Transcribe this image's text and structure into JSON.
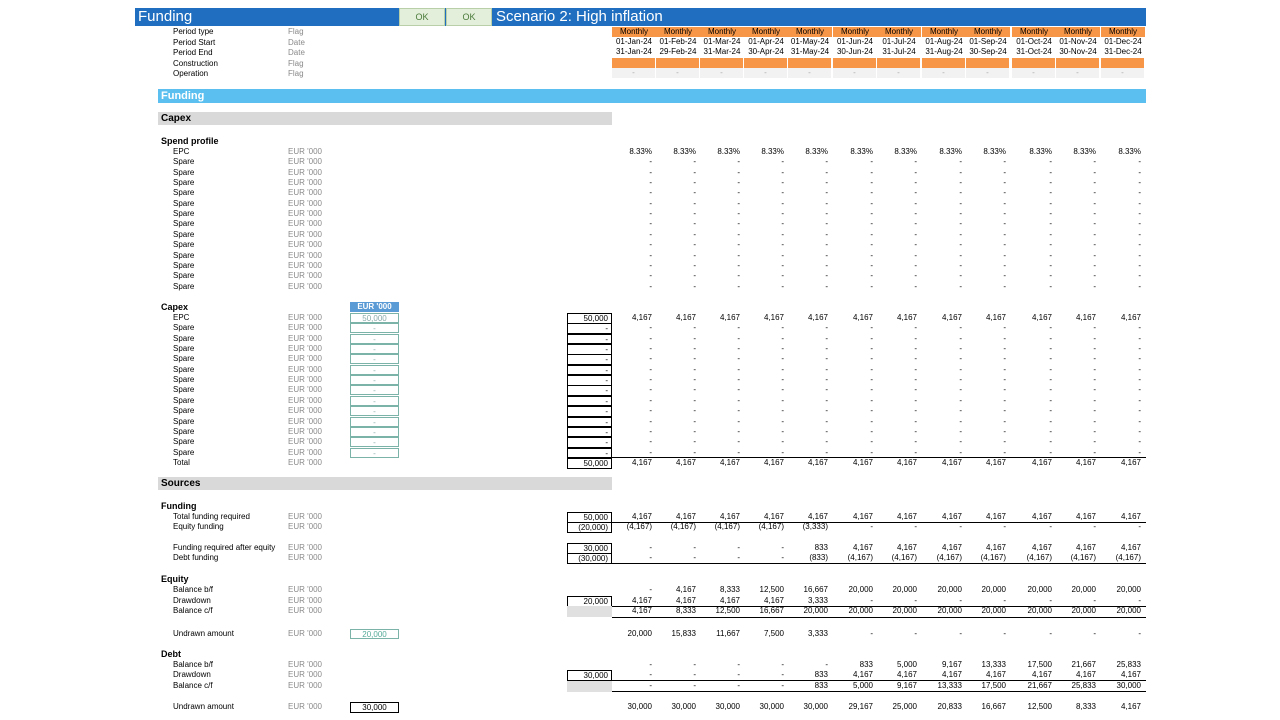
{
  "header": {
    "title": "Funding",
    "ok1": "OK",
    "ok2": "OK",
    "scenario": "Scenario 2: High inflation"
  },
  "timeline": {
    "rows": [
      {
        "label": "Period type",
        "unit": "Flag"
      },
      {
        "label": "Period Start",
        "unit": "Date"
      },
      {
        "label": "Period End",
        "unit": "Date"
      },
      {
        "label": "Construction",
        "unit": "Flag"
      },
      {
        "label": "Operation",
        "unit": "Flag"
      }
    ],
    "period_type": [
      "Monthly",
      "Monthly",
      "Monthly",
      "Monthly",
      "Monthly",
      "Monthly",
      "Monthly",
      "Monthly",
      "Monthly",
      "Monthly",
      "Monthly",
      "Monthly"
    ],
    "start": [
      "01-Jan-24",
      "01-Feb-24",
      "01-Mar-24",
      "01-Apr-24",
      "01-May-24",
      "01-Jun-24",
      "01-Jul-24",
      "01-Aug-24",
      "01-Sep-24",
      "01-Oct-24",
      "01-Nov-24",
      "01-Dec-24"
    ],
    "end": [
      "31-Jan-24",
      "29-Feb-24",
      "31-Mar-24",
      "30-Apr-24",
      "31-May-24",
      "30-Jun-24",
      "31-Jul-24",
      "31-Aug-24",
      "30-Sep-24",
      "31-Oct-24",
      "30-Nov-24",
      "31-Dec-24"
    ],
    "operation": [
      "-",
      "-",
      "-",
      "-",
      "-",
      "-",
      "-",
      "-",
      "-",
      "-",
      "-",
      "-"
    ]
  },
  "funding_band": "Funding",
  "capex_section": "Capex",
  "spend_profile": {
    "heading": "Spend profile",
    "rows": [
      {
        "label": "EPC",
        "unit": "EUR '000",
        "values": [
          "8.33%",
          "8.33%",
          "8.33%",
          "8.33%",
          "8.33%",
          "8.33%",
          "8.33%",
          "8.33%",
          "8.33%",
          "8.33%",
          "8.33%",
          "8.33%"
        ]
      },
      {
        "label": "Spare",
        "unit": "EUR '000",
        "values": [
          "-",
          "-",
          "-",
          "-",
          "-",
          "-",
          "-",
          "-",
          "-",
          "-",
          "-",
          "-"
        ]
      },
      {
        "label": "Spare",
        "unit": "EUR '000",
        "values": [
          "-",
          "-",
          "-",
          "-",
          "-",
          "-",
          "-",
          "-",
          "-",
          "-",
          "-",
          "-"
        ]
      },
      {
        "label": "Spare",
        "unit": "EUR '000",
        "values": [
          "-",
          "-",
          "-",
          "-",
          "-",
          "-",
          "-",
          "-",
          "-",
          "-",
          "-",
          "-"
        ]
      },
      {
        "label": "Spare",
        "unit": "EUR '000",
        "values": [
          "-",
          "-",
          "-",
          "-",
          "-",
          "-",
          "-",
          "-",
          "-",
          "-",
          "-",
          "-"
        ]
      },
      {
        "label": "Spare",
        "unit": "EUR '000",
        "values": [
          "-",
          "-",
          "-",
          "-",
          "-",
          "-",
          "-",
          "-",
          "-",
          "-",
          "-",
          "-"
        ]
      },
      {
        "label": "Spare",
        "unit": "EUR '000",
        "values": [
          "-",
          "-",
          "-",
          "-",
          "-",
          "-",
          "-",
          "-",
          "-",
          "-",
          "-",
          "-"
        ]
      },
      {
        "label": "Spare",
        "unit": "EUR '000",
        "values": [
          "-",
          "-",
          "-",
          "-",
          "-",
          "-",
          "-",
          "-",
          "-",
          "-",
          "-",
          "-"
        ]
      },
      {
        "label": "Spare",
        "unit": "EUR '000",
        "values": [
          "-",
          "-",
          "-",
          "-",
          "-",
          "-",
          "-",
          "-",
          "-",
          "-",
          "-",
          "-"
        ]
      },
      {
        "label": "Spare",
        "unit": "EUR '000",
        "values": [
          "-",
          "-",
          "-",
          "-",
          "-",
          "-",
          "-",
          "-",
          "-",
          "-",
          "-",
          "-"
        ]
      },
      {
        "label": "Spare",
        "unit": "EUR '000",
        "values": [
          "-",
          "-",
          "-",
          "-",
          "-",
          "-",
          "-",
          "-",
          "-",
          "-",
          "-",
          "-"
        ]
      },
      {
        "label": "Spare",
        "unit": "EUR '000",
        "values": [
          "-",
          "-",
          "-",
          "-",
          "-",
          "-",
          "-",
          "-",
          "-",
          "-",
          "-",
          "-"
        ]
      },
      {
        "label": "Spare",
        "unit": "EUR '000",
        "values": [
          "-",
          "-",
          "-",
          "-",
          "-",
          "-",
          "-",
          "-",
          "-",
          "-",
          "-",
          "-"
        ]
      },
      {
        "label": "Spare",
        "unit": "EUR '000",
        "values": [
          "-",
          "-",
          "-",
          "-",
          "-",
          "-",
          "-",
          "-",
          "-",
          "-",
          "-",
          "-"
        ]
      }
    ]
  },
  "capex": {
    "heading": "Capex",
    "input_header": "EUR '000",
    "rows": [
      {
        "label": "EPC",
        "unit": "EUR '000",
        "input": "50,000",
        "total": "50,000",
        "values": [
          "4,167",
          "4,167",
          "4,167",
          "4,167",
          "4,167",
          "4,167",
          "4,167",
          "4,167",
          "4,167",
          "4,167",
          "4,167",
          "4,167"
        ]
      },
      {
        "label": "Spare",
        "unit": "EUR '000",
        "input": "-",
        "total": "-",
        "values": [
          "-",
          "-",
          "-",
          "-",
          "-",
          "-",
          "-",
          "-",
          "-",
          "-",
          "-",
          "-"
        ]
      },
      {
        "label": "Spare",
        "unit": "EUR '000",
        "input": "-",
        "total": "-",
        "values": [
          "-",
          "-",
          "-",
          "-",
          "-",
          "-",
          "-",
          "-",
          "-",
          "-",
          "-",
          "-"
        ]
      },
      {
        "label": "Spare",
        "unit": "EUR '000",
        "input": "-",
        "total": "-",
        "values": [
          "-",
          "-",
          "-",
          "-",
          "-",
          "-",
          "-",
          "-",
          "-",
          "-",
          "-",
          "-"
        ]
      },
      {
        "label": "Spare",
        "unit": "EUR '000",
        "input": "-",
        "total": "-",
        "values": [
          "-",
          "-",
          "-",
          "-",
          "-",
          "-",
          "-",
          "-",
          "-",
          "-",
          "-",
          "-"
        ]
      },
      {
        "label": "Spare",
        "unit": "EUR '000",
        "input": "-",
        "total": "-",
        "values": [
          "-",
          "-",
          "-",
          "-",
          "-",
          "-",
          "-",
          "-",
          "-",
          "-",
          "-",
          "-"
        ]
      },
      {
        "label": "Spare",
        "unit": "EUR '000",
        "input": "-",
        "total": "-",
        "values": [
          "-",
          "-",
          "-",
          "-",
          "-",
          "-",
          "-",
          "-",
          "-",
          "-",
          "-",
          "-"
        ]
      },
      {
        "label": "Spare",
        "unit": "EUR '000",
        "input": "-",
        "total": "-",
        "values": [
          "-",
          "-",
          "-",
          "-",
          "-",
          "-",
          "-",
          "-",
          "-",
          "-",
          "-",
          "-"
        ]
      },
      {
        "label": "Spare",
        "unit": "EUR '000",
        "input": "-",
        "total": "-",
        "values": [
          "-",
          "-",
          "-",
          "-",
          "-",
          "-",
          "-",
          "-",
          "-",
          "-",
          "-",
          "-"
        ]
      },
      {
        "label": "Spare",
        "unit": "EUR '000",
        "input": "-",
        "total": "-",
        "values": [
          "-",
          "-",
          "-",
          "-",
          "-",
          "-",
          "-",
          "-",
          "-",
          "-",
          "-",
          "-"
        ]
      },
      {
        "label": "Spare",
        "unit": "EUR '000",
        "input": "-",
        "total": "-",
        "values": [
          "-",
          "-",
          "-",
          "-",
          "-",
          "-",
          "-",
          "-",
          "-",
          "-",
          "-",
          "-"
        ]
      },
      {
        "label": "Spare",
        "unit": "EUR '000",
        "input": "-",
        "total": "-",
        "values": [
          "-",
          "-",
          "-",
          "-",
          "-",
          "-",
          "-",
          "-",
          "-",
          "-",
          "-",
          "-"
        ]
      },
      {
        "label": "Spare",
        "unit": "EUR '000",
        "input": "-",
        "total": "-",
        "values": [
          "-",
          "-",
          "-",
          "-",
          "-",
          "-",
          "-",
          "-",
          "-",
          "-",
          "-",
          "-"
        ]
      },
      {
        "label": "Spare",
        "unit": "EUR '000",
        "input": "-",
        "total": "-",
        "values": [
          "-",
          "-",
          "-",
          "-",
          "-",
          "-",
          "-",
          "-",
          "-",
          "-",
          "-",
          "-"
        ]
      }
    ],
    "total": {
      "label": "Total",
      "unit": "EUR '000",
      "total": "50,000",
      "values": [
        "4,167",
        "4,167",
        "4,167",
        "4,167",
        "4,167",
        "4,167",
        "4,167",
        "4,167",
        "4,167",
        "4,167",
        "4,167",
        "4,167"
      ]
    }
  },
  "sources_section": "Sources",
  "funding": {
    "heading": "Funding",
    "total_required": {
      "label": "Total funding required",
      "unit": "EUR '000",
      "total": "50,000",
      "values": [
        "4,167",
        "4,167",
        "4,167",
        "4,167",
        "4,167",
        "4,167",
        "4,167",
        "4,167",
        "4,167",
        "4,167",
        "4,167",
        "4,167"
      ]
    },
    "equity_funding": {
      "label": "Equity funding",
      "unit": "EUR '000",
      "total": "(20,000)",
      "values": [
        "(4,167)",
        "(4,167)",
        "(4,167)",
        "(4,167)",
        "(3,333)",
        "-",
        "-",
        "-",
        "-",
        "-",
        "-",
        "-"
      ]
    },
    "after_equity": {
      "label": "Funding required after equity",
      "unit": "EUR '000",
      "total": "30,000",
      "values": [
        "-",
        "-",
        "-",
        "-",
        "833",
        "4,167",
        "4,167",
        "4,167",
        "4,167",
        "4,167",
        "4,167",
        "4,167"
      ]
    },
    "debt_funding": {
      "label": "Debt funding",
      "unit": "EUR '000",
      "total": "(30,000)",
      "values": [
        "-",
        "-",
        "-",
        "-",
        "(833)",
        "(4,167)",
        "(4,167)",
        "(4,167)",
        "(4,167)",
        "(4,167)",
        "(4,167)",
        "(4,167)"
      ]
    }
  },
  "equity": {
    "heading": "Equity",
    "bf": {
      "label": "Balance b/f",
      "unit": "EUR '000",
      "values": [
        "-",
        "4,167",
        "8,333",
        "12,500",
        "16,667",
        "20,000",
        "20,000",
        "20,000",
        "20,000",
        "20,000",
        "20,000",
        "20,000"
      ]
    },
    "drawdown": {
      "label": "Drawdown",
      "unit": "EUR '000",
      "total": "20,000",
      "values": [
        "4,167",
        "4,167",
        "4,167",
        "4,167",
        "3,333",
        "-",
        "-",
        "-",
        "-",
        "-",
        "-",
        "-"
      ]
    },
    "cf": {
      "label": "Balance c/f",
      "unit": "EUR '000",
      "values": [
        "4,167",
        "8,333",
        "12,500",
        "16,667",
        "20,000",
        "20,000",
        "20,000",
        "20,000",
        "20,000",
        "20,000",
        "20,000",
        "20,000"
      ]
    },
    "undrawn": {
      "label": "Undrawn amount",
      "unit": "EUR '000",
      "input": "20,000",
      "values": [
        "20,000",
        "15,833",
        "11,667",
        "7,500",
        "3,333",
        "-",
        "-",
        "-",
        "-",
        "-",
        "-",
        "-"
      ]
    }
  },
  "debt": {
    "heading": "Debt",
    "bf": {
      "label": "Balance b/f",
      "unit": "EUR '000",
      "values": [
        "-",
        "-",
        "-",
        "-",
        "-",
        "833",
        "5,000",
        "9,167",
        "13,333",
        "17,500",
        "21,667",
        "25,833"
      ]
    },
    "drawdown": {
      "label": "Drawdown",
      "unit": "EUR '000",
      "total": "30,000",
      "values": [
        "-",
        "-",
        "-",
        "-",
        "833",
        "4,167",
        "4,167",
        "4,167",
        "4,167",
        "4,167",
        "4,167",
        "4,167"
      ]
    },
    "cf": {
      "label": "Balance c/f",
      "unit": "EUR '000",
      "values": [
        "-",
        "-",
        "-",
        "-",
        "833",
        "5,000",
        "9,167",
        "13,333",
        "17,500",
        "21,667",
        "25,833",
        "30,000"
      ]
    },
    "undrawn": {
      "label": "Undrawn amount",
      "unit": "EUR '000",
      "input": "30,000",
      "values": [
        "30,000",
        "30,000",
        "30,000",
        "30,000",
        "30,000",
        "29,167",
        "25,000",
        "20,833",
        "16,667",
        "12,500",
        "8,333",
        "4,167"
      ]
    }
  }
}
